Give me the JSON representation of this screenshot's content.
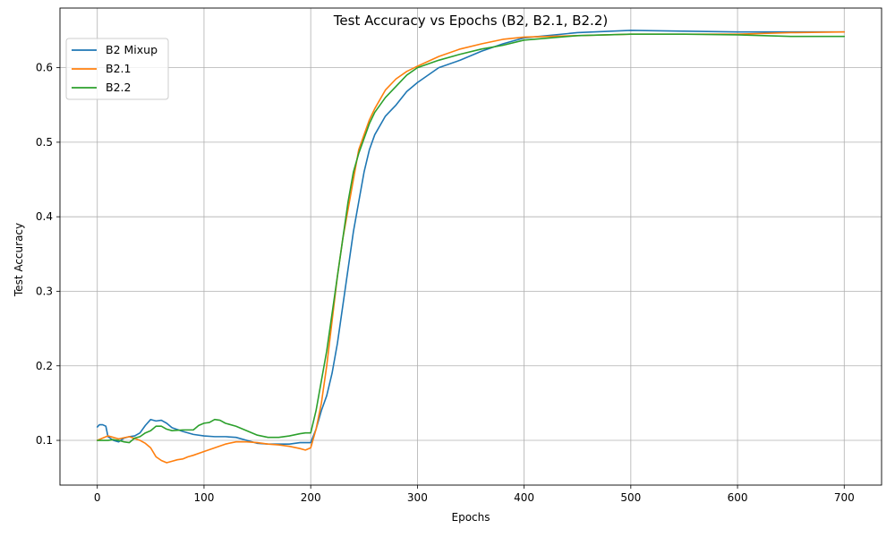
{
  "chart_data": {
    "type": "line",
    "title": "Test Accuracy vs Epochs (B2, B2.1, B2.2)",
    "xlabel": "Epochs",
    "ylabel": "Test Accuracy",
    "xlim": [
      -35,
      735
    ],
    "ylim": [
      0.04,
      0.68
    ],
    "xticks": [
      0,
      100,
      200,
      300,
      400,
      500,
      600,
      700
    ],
    "yticks": [
      0.1,
      0.2,
      0.3,
      0.4,
      0.5,
      0.6
    ],
    "ytick_labels": [
      "0.1",
      "0.2",
      "0.3",
      "0.4",
      "0.5",
      "0.6"
    ],
    "grid": true,
    "legend_position": "top-left",
    "series": [
      {
        "name": "B2 Mixup",
        "color": "#1f77b4",
        "x": [
          0,
          2,
          5,
          8,
          10,
          15,
          20,
          25,
          30,
          35,
          40,
          45,
          50,
          55,
          60,
          65,
          70,
          80,
          90,
          100,
          110,
          120,
          130,
          140,
          150,
          160,
          170,
          180,
          190,
          195,
          200,
          205,
          210,
          215,
          220,
          225,
          230,
          235,
          240,
          245,
          250,
          255,
          260,
          270,
          280,
          290,
          300,
          320,
          340,
          360,
          380,
          400,
          450,
          500,
          550,
          600,
          650,
          700
        ],
        "y": [
          0.118,
          0.121,
          0.121,
          0.119,
          0.105,
          0.1,
          0.098,
          0.103,
          0.105,
          0.106,
          0.11,
          0.12,
          0.128,
          0.126,
          0.127,
          0.123,
          0.117,
          0.112,
          0.108,
          0.106,
          0.105,
          0.105,
          0.104,
          0.1,
          0.096,
          0.095,
          0.095,
          0.095,
          0.097,
          0.097,
          0.097,
          0.115,
          0.14,
          0.16,
          0.19,
          0.23,
          0.28,
          0.33,
          0.38,
          0.42,
          0.46,
          0.49,
          0.51,
          0.535,
          0.55,
          0.568,
          0.58,
          0.6,
          0.61,
          0.622,
          0.632,
          0.64,
          0.647,
          0.65,
          0.649,
          0.648,
          0.648,
          0.648
        ]
      },
      {
        "name": "B2.1",
        "color": "#ff7f0e",
        "x": [
          0,
          5,
          10,
          15,
          20,
          30,
          40,
          45,
          50,
          55,
          60,
          65,
          70,
          75,
          80,
          85,
          90,
          100,
          110,
          120,
          130,
          140,
          150,
          160,
          170,
          180,
          190,
          195,
          200,
          205,
          210,
          215,
          220,
          225,
          230,
          235,
          240,
          245,
          250,
          255,
          260,
          270,
          280,
          290,
          300,
          320,
          340,
          360,
          380,
          400,
          450,
          500,
          550,
          600,
          650,
          700
        ],
        "y": [
          0.1,
          0.103,
          0.106,
          0.104,
          0.102,
          0.105,
          0.1,
          0.096,
          0.09,
          0.078,
          0.073,
          0.07,
          0.072,
          0.074,
          0.075,
          0.078,
          0.08,
          0.085,
          0.09,
          0.095,
          0.098,
          0.098,
          0.097,
          0.095,
          0.094,
          0.092,
          0.089,
          0.087,
          0.09,
          0.115,
          0.15,
          0.2,
          0.26,
          0.32,
          0.37,
          0.41,
          0.45,
          0.49,
          0.51,
          0.53,
          0.545,
          0.57,
          0.585,
          0.595,
          0.602,
          0.615,
          0.625,
          0.632,
          0.638,
          0.641,
          0.643,
          0.645,
          0.645,
          0.645,
          0.647,
          0.648
        ]
      },
      {
        "name": "B2.2",
        "color": "#2ca02c",
        "x": [
          0,
          5,
          10,
          15,
          20,
          25,
          30,
          35,
          40,
          45,
          50,
          55,
          60,
          65,
          70,
          80,
          90,
          95,
          100,
          105,
          110,
          115,
          120,
          130,
          140,
          150,
          160,
          170,
          180,
          190,
          195,
          200,
          205,
          210,
          215,
          220,
          225,
          230,
          235,
          240,
          245,
          250,
          255,
          260,
          270,
          280,
          290,
          300,
          320,
          340,
          360,
          380,
          400,
          450,
          500,
          550,
          600,
          650,
          700
        ],
        "y": [
          0.1,
          0.1,
          0.1,
          0.101,
          0.1,
          0.098,
          0.097,
          0.103,
          0.105,
          0.11,
          0.113,
          0.119,
          0.119,
          0.115,
          0.113,
          0.114,
          0.114,
          0.12,
          0.123,
          0.124,
          0.128,
          0.127,
          0.123,
          0.119,
          0.113,
          0.107,
          0.104,
          0.104,
          0.106,
          0.109,
          0.11,
          0.11,
          0.14,
          0.18,
          0.22,
          0.27,
          0.32,
          0.37,
          0.42,
          0.46,
          0.485,
          0.505,
          0.525,
          0.54,
          0.56,
          0.575,
          0.59,
          0.6,
          0.61,
          0.618,
          0.625,
          0.63,
          0.637,
          0.643,
          0.645,
          0.645,
          0.644,
          0.642,
          0.642
        ]
      }
    ]
  }
}
